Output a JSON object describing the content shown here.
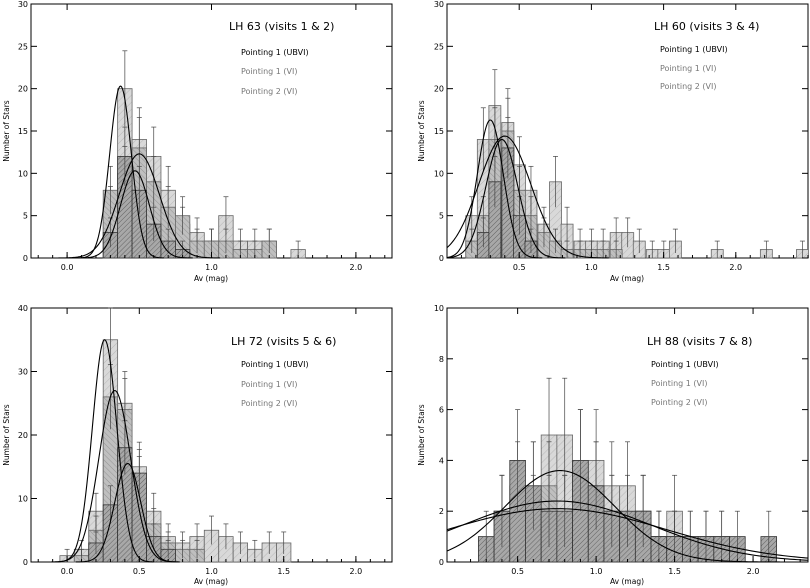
{
  "chart_data": [
    {
      "type": "histogram",
      "title": "LH 63 (visits 1 & 2)",
      "xlabel": "Av (mag)",
      "ylabel": "Number of Stars",
      "xlim": [
        -0.25,
        2.25
      ],
      "ylim": [
        0,
        30
      ],
      "xticks": [
        "0.0",
        "1.0",
        "2.0"
      ],
      "xtick_values": [
        0.0,
        1.0,
        2.0
      ],
      "yticks": [
        "0",
        "5",
        "10",
        "15",
        "20",
        "25",
        "30"
      ],
      "ytick_values": [
        0,
        5,
        10,
        15,
        20,
        25,
        30
      ],
      "bin_width": 0.1,
      "legend": [
        {
          "label": "Pointing 1 (UBVI)",
          "color": "#000000"
        },
        {
          "label": "Pointing 1 (VI)",
          "color": "#777777"
        },
        {
          "label": "Pointing 2 (VI)",
          "color": "#777777"
        }
      ],
      "series": [
        {
          "name": "Pointing 1 (UBVI)",
          "style": "hatched-dark",
          "bins_start": [
            0.25,
            0.35,
            0.45,
            0.55,
            0.65,
            0.75
          ],
          "values": [
            3,
            12,
            8,
            4,
            2,
            1
          ]
        },
        {
          "name": "Pointing 1 (VI)",
          "style": "light",
          "bins_start": [
            0.25,
            0.35,
            0.45,
            0.55,
            0.65,
            0.75,
            0.85,
            0.95,
            1.05,
            1.15,
            1.25,
            1.35,
            1.55
          ],
          "values": [
            6,
            20,
            14,
            12,
            8,
            4,
            3,
            2,
            5,
            2,
            2,
            2,
            1
          ]
        },
        {
          "name": "Pointing 2 (VI)",
          "style": "medium",
          "bins_start": [
            0.25,
            0.35,
            0.45,
            0.55,
            0.65,
            0.75,
            0.85,
            0.95,
            1.05,
            1.15,
            1.25,
            1.35
          ],
          "values": [
            8,
            10,
            13,
            9,
            6,
            5,
            2,
            2,
            2,
            1,
            1,
            2
          ]
        }
      ],
      "fits": [
        {
          "amp": 20.3,
          "mu": 0.37,
          "sigma": 0.075
        },
        {
          "amp": 12.3,
          "mu": 0.5,
          "sigma": 0.14
        },
        {
          "amp": 10.3,
          "mu": 0.47,
          "sigma": 0.1
        }
      ]
    },
    {
      "type": "histogram",
      "title": "LH 60 (visits 3 & 4)",
      "xlabel": "Av (mag)",
      "ylabel": "Number of Stars",
      "xlim": [
        0,
        2.5
      ],
      "ylim": [
        0,
        30
      ],
      "xticks": [
        "0.5",
        "1.0",
        "1.5",
        "2.0"
      ],
      "xtick_values": [
        0.5,
        1.0,
        1.5,
        2.0
      ],
      "yticks": [
        "0",
        "5",
        "10",
        "15",
        "20",
        "25",
        "30"
      ],
      "ytick_values": [
        0,
        5,
        10,
        15,
        20,
        25,
        30
      ],
      "bin_width": 0.083,
      "legend": [
        {
          "label": "Pointing 1 (UBVI)",
          "color": "#000000"
        },
        {
          "label": "Pointing 1 (VI)",
          "color": "#777777"
        },
        {
          "label": "Pointing 2 (VI)",
          "color": "#777777"
        }
      ],
      "series": [
        {
          "name": "Pointing 1 (UBVI)",
          "style": "hatched-dark",
          "bins_start": [
            0.21,
            0.29,
            0.38,
            0.46,
            0.54
          ],
          "values": [
            3,
            9,
            13,
            5,
            2
          ]
        },
        {
          "name": "Pointing 1 (VI)",
          "style": "light",
          "bins_start": [
            0.13,
            0.21,
            0.29,
            0.38,
            0.46,
            0.54,
            0.63,
            0.71,
            0.79,
            0.88,
            0.96,
            1.04,
            1.13,
            1.21,
            1.29,
            1.38,
            1.46,
            1.54,
            1.83,
            2.17,
            2.42
          ],
          "values": [
            5,
            14,
            18,
            16,
            11,
            8,
            4,
            9,
            4,
            2,
            2,
            2,
            3,
            3,
            2,
            1,
            1,
            2,
            1,
            1,
            1
          ]
        },
        {
          "name": "Pointing 2 (VI)",
          "style": "medium",
          "bins_start": [
            0.13,
            0.21,
            0.29,
            0.38,
            0.46,
            0.54,
            0.63,
            0.71,
            0.79,
            0.88,
            0.96,
            1.04,
            1.13
          ],
          "values": [
            2,
            5,
            14,
            15,
            8,
            5,
            3,
            2,
            1,
            1,
            1,
            1,
            1
          ]
        }
      ],
      "fits": [
        {
          "amp": 16.3,
          "mu": 0.3,
          "sigma": 0.09
        },
        {
          "amp": 14.4,
          "mu": 0.4,
          "sigma": 0.18
        },
        {
          "amp": 14.0,
          "mu": 0.38,
          "sigma": 0.11
        }
      ]
    },
    {
      "type": "histogram",
      "title": "LH 72 (visits 5 & 6)",
      "xlabel": "Av (mag)",
      "ylabel": "Number of Stars",
      "xlim": [
        -0.25,
        2.25
      ],
      "ylim": [
        0,
        40
      ],
      "xticks": [
        "0.0",
        "0.5",
        "1.0",
        "1.5",
        "2.0"
      ],
      "xtick_values": [
        0.0,
        0.5,
        1.0,
        1.5,
        2.0
      ],
      "yticks": [
        "0",
        "10",
        "20",
        "30",
        "40"
      ],
      "ytick_values": [
        0,
        10,
        20,
        30,
        40
      ],
      "bin_width": 0.1,
      "legend": [
        {
          "label": "Pointing 1 (UBVI)",
          "color": "#000000"
        },
        {
          "label": "Pointing 1 (VI)",
          "color": "#777777"
        },
        {
          "label": "Pointing 2 (VI)",
          "color": "#777777"
        }
      ],
      "series": [
        {
          "name": "Pointing 1 (UBVI)",
          "style": "hatched-dark",
          "bins_start": [
            0.15,
            0.25,
            0.35,
            0.45,
            0.55,
            0.65
          ],
          "values": [
            3,
            9,
            18,
            14,
            4,
            2
          ]
        },
        {
          "name": "Pointing 1 (VI)",
          "style": "light",
          "bins_start": [
            -0.05,
            0.05,
            0.15,
            0.25,
            0.35,
            0.45,
            0.55,
            0.65,
            0.75,
            0.85,
            0.95,
            1.05,
            1.15,
            1.25,
            1.35,
            1.45
          ],
          "values": [
            1,
            2,
            8,
            35,
            25,
            15,
            8,
            4,
            3,
            4,
            5,
            4,
            3,
            2,
            3,
            3
          ]
        },
        {
          "name": "Pointing 2 (VI)",
          "style": "medium",
          "bins_start": [
            0.05,
            0.15,
            0.25,
            0.35,
            0.45,
            0.55,
            0.65,
            0.75,
            0.85
          ],
          "values": [
            1,
            5,
            26,
            24,
            13,
            6,
            3,
            2,
            2
          ]
        }
      ],
      "fits": [
        {
          "amp": 35.0,
          "mu": 0.26,
          "sigma": 0.085
        },
        {
          "amp": 27.0,
          "mu": 0.33,
          "sigma": 0.11
        },
        {
          "amp": 15.5,
          "mu": 0.42,
          "sigma": 0.09
        }
      ]
    },
    {
      "type": "histogram",
      "title": "LH 88 (visits 7 & 8)",
      "xlabel": "Av (mag)",
      "ylabel": "Number of Stars",
      "xlim": [
        0.05,
        2.35
      ],
      "ylim": [
        0,
        10
      ],
      "xticks": [
        "0.5",
        "1.0",
        "1.5",
        "2.0"
      ],
      "xtick_values": [
        0.5,
        1.0,
        1.5,
        2.0
      ],
      "yticks": [
        "0",
        "2",
        "4",
        "6",
        "8",
        "10"
      ],
      "ytick_values": [
        0,
        2,
        4,
        6,
        8,
        10
      ],
      "bin_width": 0.1,
      "legend": [
        {
          "label": "Pointing 1 (UBVI)",
          "color": "#000000"
        },
        {
          "label": "Pointing 1 (VI)",
          "color": "#777777"
        },
        {
          "label": "Pointing 2 (VI)",
          "color": "#777777"
        }
      ],
      "series": [
        {
          "name": "Pointing 1 (UBVI)",
          "style": "hatched-dark",
          "bins_start": [
            0.25,
            0.35,
            0.45,
            0.55,
            0.65,
            0.75,
            0.85,
            0.95,
            1.05,
            1.15,
            1.25,
            1.35,
            1.45,
            1.55,
            1.65,
            1.75,
            1.85,
            1.95,
            2.05
          ],
          "values": [
            1,
            2,
            4,
            3,
            2,
            2,
            4,
            3,
            2,
            2,
            2,
            1,
            1,
            1,
            1,
            1,
            1,
            0,
            1
          ]
        },
        {
          "name": "Pointing 1 (VI)",
          "style": "light",
          "bins_start": [
            0.35,
            0.45,
            0.55,
            0.65,
            0.75,
            0.85,
            0.95,
            1.05,
            1.15,
            1.25,
            1.35,
            1.45,
            1.55,
            1.65,
            1.75
          ],
          "values": [
            2,
            3,
            3,
            5,
            5,
            4,
            4,
            3,
            3,
            2,
            1,
            2,
            1,
            1,
            1
          ]
        },
        {
          "name": "Pointing 2 (VI)",
          "style": "medium",
          "bins_start": [
            0.35,
            0.45,
            0.55,
            0.65,
            0.75,
            0.85,
            0.95,
            1.05,
            1.15,
            1.25,
            1.35,
            1.45
          ],
          "values": [
            2,
            2,
            2,
            3,
            2,
            2,
            3,
            2,
            1,
            2,
            1,
            1
          ]
        }
      ],
      "fits": [
        {
          "amp": 3.6,
          "mu": 0.77,
          "sigma": 0.35
        },
        {
          "amp": 2.4,
          "mu": 0.75,
          "sigma": 0.6
        },
        {
          "amp": 2.1,
          "mu": 0.75,
          "sigma": 0.7
        }
      ]
    }
  ]
}
